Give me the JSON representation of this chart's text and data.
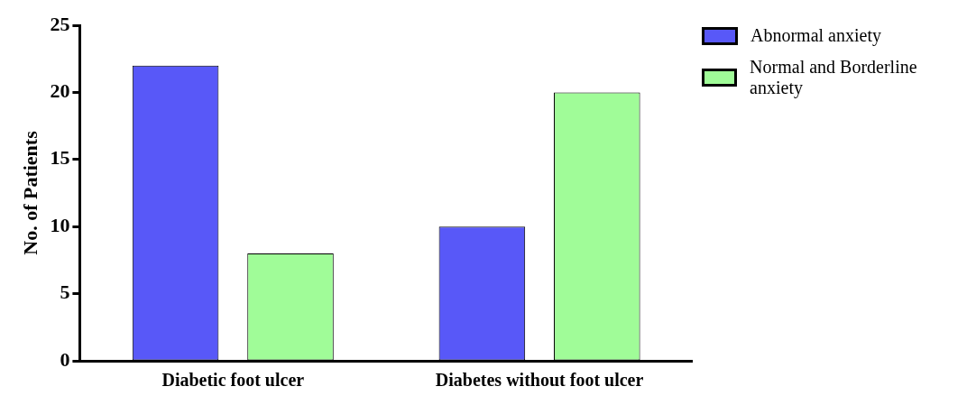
{
  "chart_data": {
    "type": "bar",
    "ylabel": "No. of Patients",
    "categories": [
      "Diabetic foot ulcer",
      "Diabetes without foot ulcer"
    ],
    "series": [
      {
        "name": "Abnormal anxiety",
        "color": "#5858f8",
        "values": [
          22,
          10
        ]
      },
      {
        "name": "Normal and Borderline anxiety",
        "color": "#a0fc98",
        "values": [
          8,
          20
        ]
      }
    ],
    "ylim": [
      0,
      25
    ],
    "yticks": [
      0,
      5,
      10,
      15,
      20,
      25
    ],
    "grid": false,
    "legend": "top right"
  }
}
